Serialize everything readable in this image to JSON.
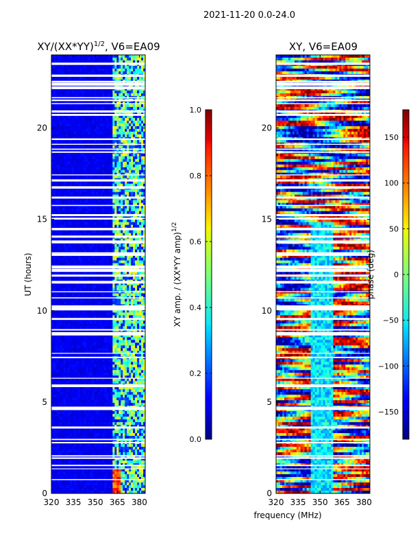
{
  "figure": {
    "suptitle": "2021-11-20 0.0-24.0",
    "xlabel_shared": "frequency (MHz)"
  },
  "chart_data": [
    {
      "type": "heatmap",
      "title": "XY/(XX*YY)",
      "title_exponent": "1/2",
      "title_suffix": ", V6=EA09",
      "ylabel": "UT (hours)",
      "xlim": [
        320,
        384
      ],
      "ylim": [
        0,
        24
      ],
      "xticks": [
        320,
        335,
        350,
        365,
        380
      ],
      "yticks": [
        0,
        5,
        10,
        15,
        20
      ],
      "colorbar": {
        "label": "XY amp. / (XX*YY amp)",
        "label_exponent": "1/2",
        "range": [
          0.0,
          1.0
        ],
        "ticks": [
          "0.0",
          "0.2",
          "0.4",
          "0.6",
          "0.8",
          "1.0"
        ],
        "ticks_values": [
          0.0,
          0.2,
          0.4,
          0.6,
          0.8,
          1.0
        ],
        "colormap": "jet"
      }
    },
    {
      "type": "heatmap",
      "title": "XY, V6=EA09",
      "ylabel": "",
      "xlim": [
        320,
        384
      ],
      "ylim": [
        0,
        24
      ],
      "xticks": [
        320,
        335,
        350,
        365,
        380
      ],
      "yticks": [
        0,
        5,
        10,
        15,
        20
      ],
      "colorbar": {
        "label": "phase (deg)",
        "range": [
          -180,
          180
        ],
        "ticks": [
          "−150",
          "−100",
          "−50",
          "0",
          "50",
          "100",
          "150"
        ],
        "ticks_values": [
          -150,
          -100,
          -50,
          0,
          50,
          100,
          150
        ],
        "colormap": "jet"
      }
    }
  ]
}
